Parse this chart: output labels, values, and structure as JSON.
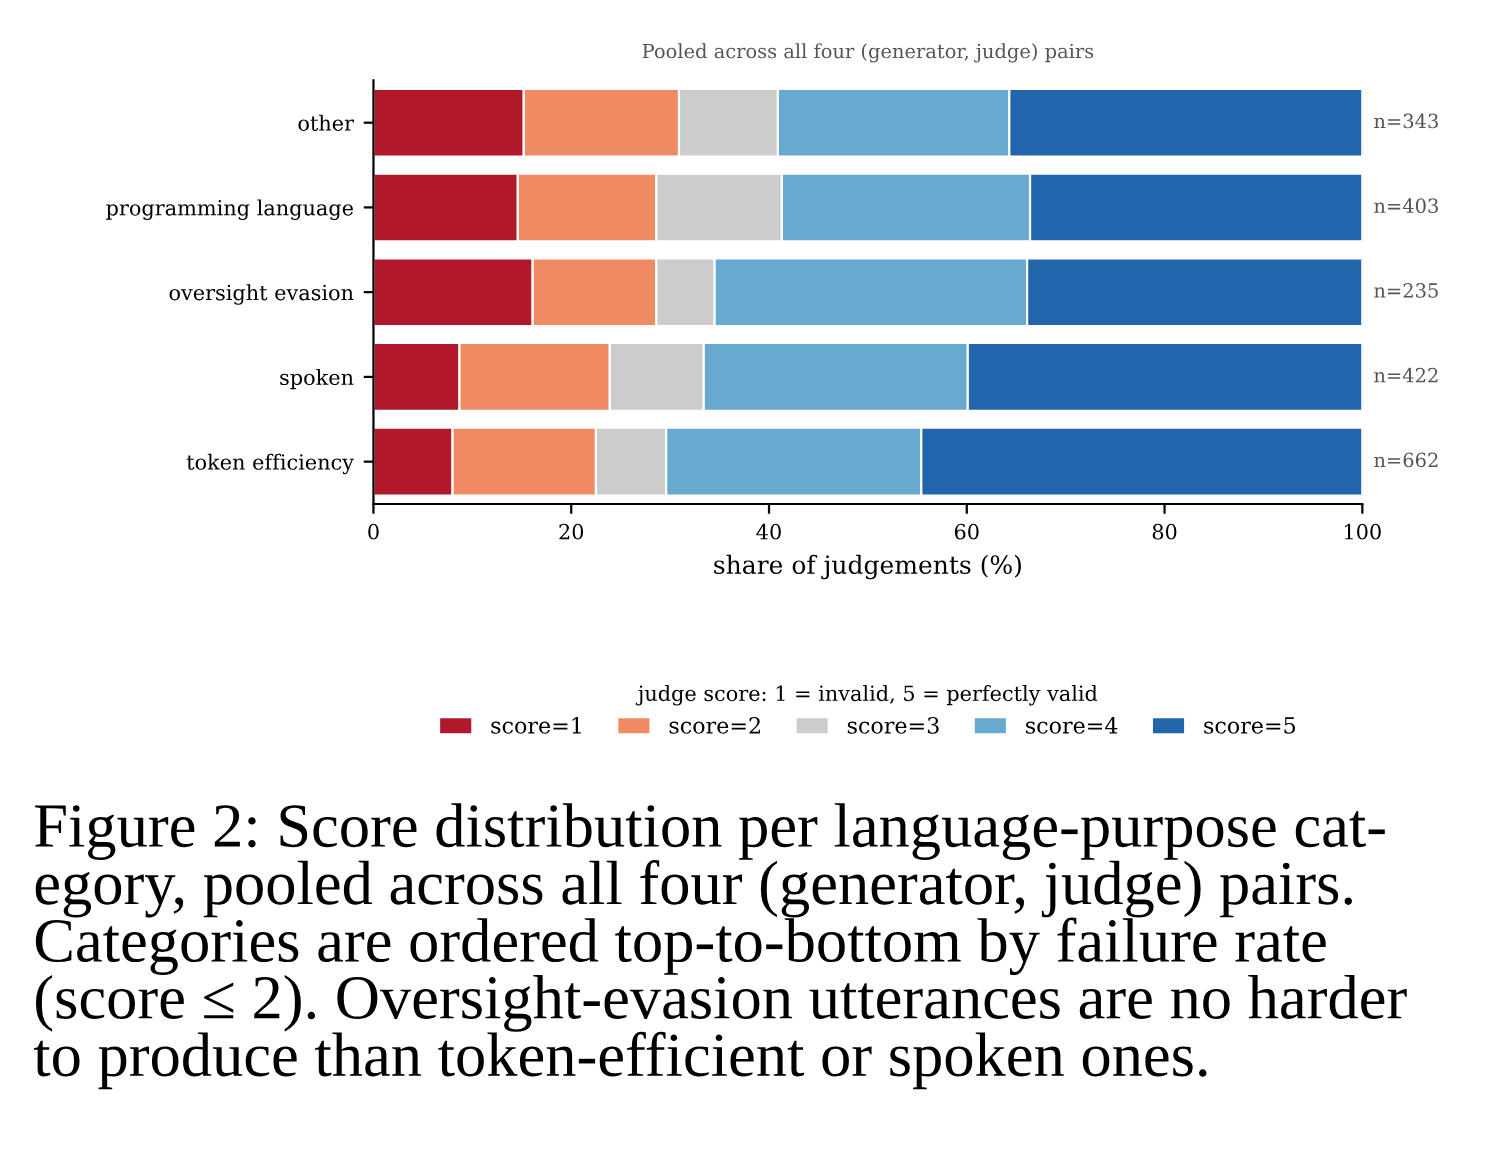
{
  "chart_data": {
    "type": "bar",
    "orientation": "horizontal",
    "stacked": true,
    "title": "Pooled across all four (generator, judge) pairs",
    "xlabel": "share of judgements (%)",
    "categories": [
      "other",
      "programming language",
      "oversight evasion",
      "spoken",
      "token efficiency"
    ],
    "series": [
      {
        "name": "score=1",
        "color": "#b2182b",
        "values": [
          15.2,
          14.6,
          16.1,
          8.7,
          8.0
        ]
      },
      {
        "name": "score=2",
        "color": "#ef8a62",
        "values": [
          15.7,
          14.0,
          12.5,
          15.2,
          14.5
        ]
      },
      {
        "name": "score=3",
        "color": "#cccccc",
        "values": [
          10.0,
          12.7,
          5.9,
          9.5,
          7.1
        ]
      },
      {
        "name": "score=4",
        "color": "#67a9cf",
        "values": [
          23.4,
          25.1,
          31.6,
          26.7,
          25.8
        ]
      },
      {
        "name": "score=5",
        "color": "#2166ac",
        "values": [
          35.7,
          33.6,
          33.9,
          39.9,
          44.6
        ]
      }
    ],
    "xlim": [
      0,
      100
    ],
    "xticks": [
      0,
      20,
      40,
      60,
      80,
      100
    ],
    "legend": "bottom",
    "legend_title": "judge score: 1 = invalid, 5 = perfectly valid",
    "grid": false,
    "annotations": [
      "n=343",
      "n=403",
      "n=235",
      "n=422",
      "n=662",
      "Figure 2: Score distribution per language-purpose cat-\negory, pooled across all four (generator, judge) pairs.\nCategories are ordered top-to-bottom by failure rate\n(score ≤ 2). Oversight-evasion utterances are no harder\nto produce than token-efficient or spoken ones."
    ]
  }
}
